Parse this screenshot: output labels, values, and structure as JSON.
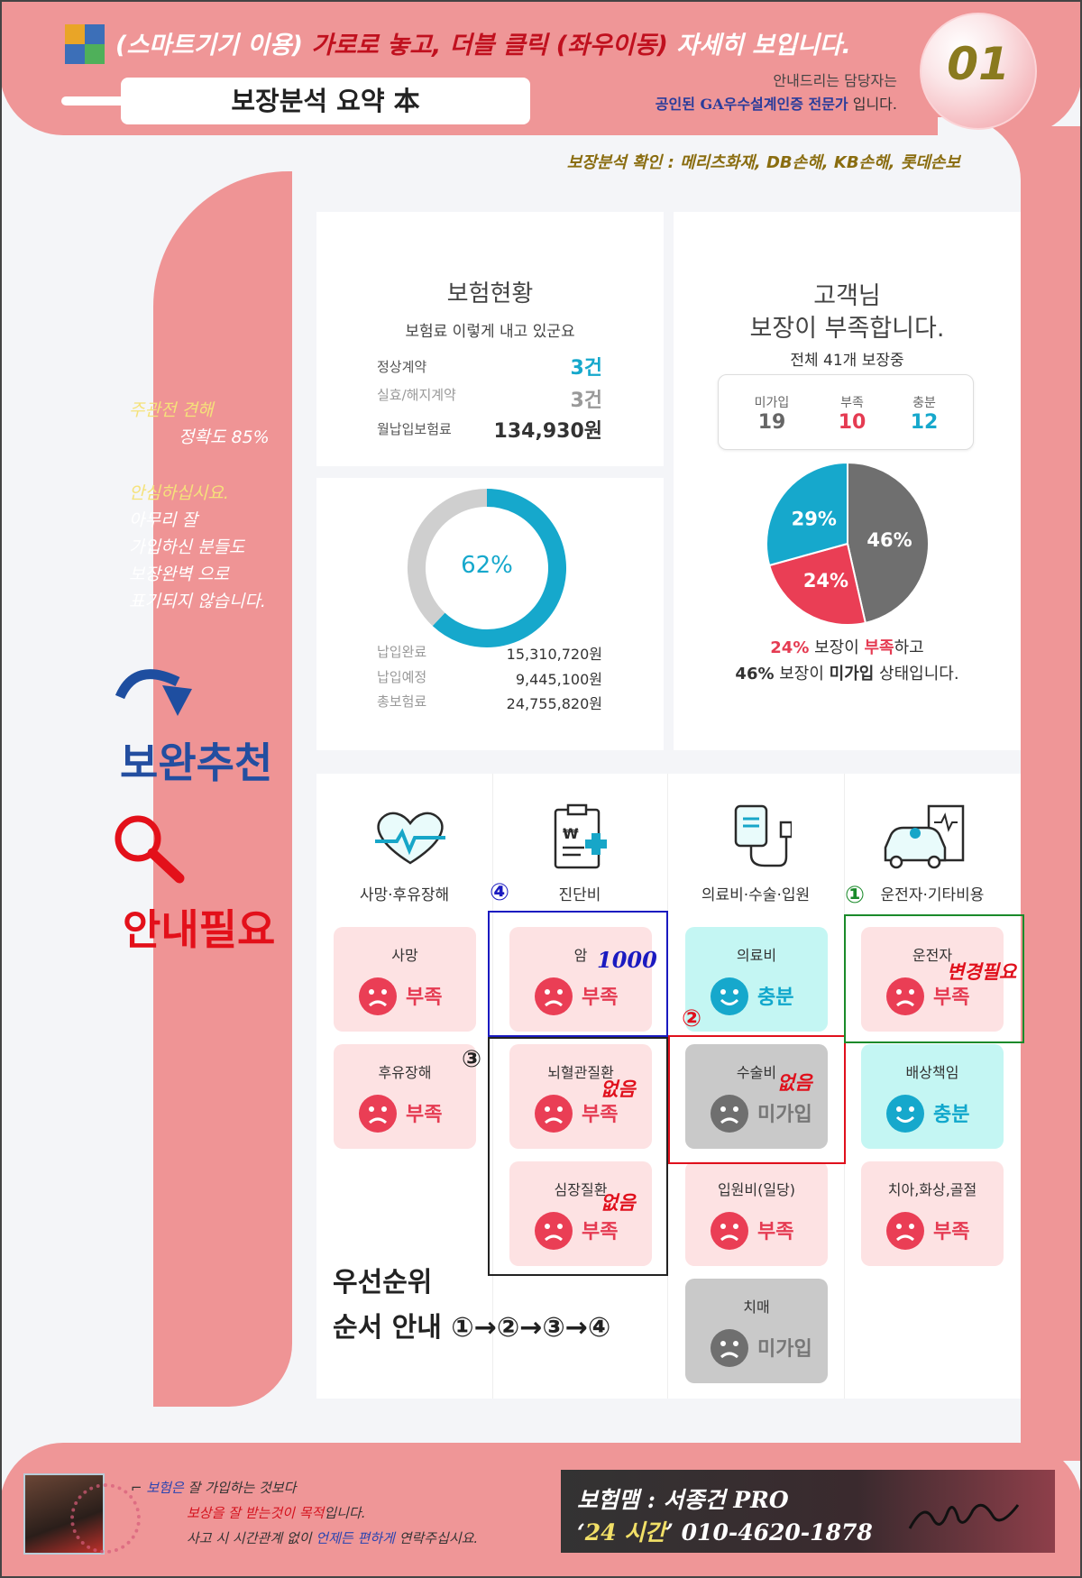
{
  "header": {
    "title_part1": "(스마트기기 이용) ",
    "title_part2": "가로로 놓고, 더블 클릭 (좌우이동)",
    "title_part3": " 자세히 보입니다.",
    "summary_title": "보장분석 요약 本",
    "guide_line1": "안내드리는 담당자는",
    "guide_line2_prefix": "공인된 GA우수설계인증 전문가",
    "guide_line2_suffix": " 입니다.",
    "page_number": "01",
    "insurers": "보장분석 확인 : 메리츠화재, DB손해, KB손해, 롯데손보"
  },
  "sidebar": {
    "accuracy_line1": "주관전 견해",
    "accuracy_line2": "정확도 85%",
    "reassure_line1": "안심하십시요.",
    "reassure_line2": "아무리 잘",
    "reassure_line3": "가입하신 분들도",
    "reassure_line4": "보장완벽 으로",
    "reassure_line5": "표기되지 않습니다.",
    "recommend_label": "보완추천",
    "need_label": "안내필요"
  },
  "status": {
    "title": "보험현황",
    "subtitle": "보험료 이렇게 내고 있군요",
    "rows": [
      {
        "label": "정상계약",
        "value": "3건",
        "color": "#16a8cc"
      },
      {
        "label": "실효/해지계약",
        "value": "3건",
        "color": "#999999"
      },
      {
        "label": "월납입보험료",
        "value": "134,930원",
        "color": "#333333"
      }
    ]
  },
  "payment": {
    "percent_text": "62%",
    "rows": [
      {
        "label": "납입완료",
        "value": "15,310,720원"
      },
      {
        "label": "납입예정",
        "value": "9,445,100원"
      },
      {
        "label": "총보험료",
        "value": "24,755,820원"
      }
    ]
  },
  "coverage": {
    "title_line1": "고객님",
    "title_line2": "보장이 부족합니다.",
    "total_text": "전체 41개 보장중",
    "stats": [
      {
        "label": "미가입",
        "value": "19",
        "color": "#666666"
      },
      {
        "label": "부족",
        "value": "10",
        "color": "#e53b52"
      },
      {
        "label": "충분",
        "value": "12",
        "color": "#16a8cc"
      }
    ],
    "summary1_pct": "24%",
    "summary1_mid": " 보장이 ",
    "summary1_bold": "부족",
    "summary1_end": "하고",
    "summary2_pct": "46%",
    "summary2_mid": " 보장이 ",
    "summary2_bold": "미가입",
    "summary2_end": " 상태입니다."
  },
  "chart_data": [
    {
      "type": "pie",
      "title": "",
      "slices": [
        {
          "label": "46%",
          "value": 46,
          "color": "#6f6f6f"
        },
        {
          "label": "24%",
          "value": 24,
          "color": "#ea3e55"
        },
        {
          "label": "29%",
          "value": 29,
          "color": "#16a8cc"
        }
      ]
    },
    {
      "type": "donut",
      "title": "",
      "values": [
        {
          "label": "62%",
          "value": 62,
          "color": "#16a8cc"
        },
        {
          "label": "",
          "value": 38,
          "color": "#cfcfcf"
        }
      ]
    }
  ],
  "categories": [
    {
      "label": "사망·후유장해",
      "icon": "heart-pulse-icon"
    },
    {
      "label": "진단비",
      "icon": "clipboard-won-icon"
    },
    {
      "label": "의료비·수술·입원",
      "icon": "iv-drip-icon"
    },
    {
      "label": "운전자·기타비용",
      "icon": "car-receipt-icon"
    }
  ],
  "tiles": {
    "death": {
      "name": "사망",
      "status": "부족"
    },
    "disability": {
      "name": "후유장해",
      "status": "부족"
    },
    "cancer": {
      "name": "암",
      "status": "부족",
      "note": "1000"
    },
    "stroke": {
      "name": "뇌혈관질환",
      "status": "부족",
      "note": "없음"
    },
    "heart": {
      "name": "심장질환",
      "status": "부족",
      "note": "없음"
    },
    "medical": {
      "name": "의료비",
      "status": "충분"
    },
    "surgery": {
      "name": "수술비",
      "status": "미가입",
      "note": "없음"
    },
    "hospital": {
      "name": "입원비(일당)",
      "status": "부족"
    },
    "dementia": {
      "name": "치매",
      "status": "미가입"
    },
    "driver": {
      "name": "운전자",
      "status": "부족",
      "note": "변경필요"
    },
    "liability": {
      "name": "배상책임",
      "status": "충분"
    },
    "dental": {
      "name": "치아,화상,골절",
      "status": "부족"
    }
  },
  "markers": {
    "m1": "①",
    "m2": "②",
    "m3": "③",
    "m4": "④",
    "colors": {
      "m1": "#1a8a2a",
      "m2": "#e0101c",
      "m3": "#222222",
      "m4": "#1a1ac0"
    }
  },
  "priority": {
    "line1": "우선순위",
    "line2": "순서 안내 ①→②→③→④"
  },
  "footer": {
    "quote_l1a": "보험은",
    "quote_l1b": " 잘 가입하는 것보다",
    "quote_l2a": "보상을 잘 받는것이 목적",
    "quote_l2b": "입니다.",
    "quote_l3a": "사고 시 시간관계 없이 ",
    "quote_l3b": "언제든 편하게",
    "quote_l3c": " 연락주십시요.",
    "agent": "보험맴 : 서종건 PRO",
    "hours_open": "‘",
    "hours": "24 시간",
    "hours_close": "’",
    "phone": "010-4620-1878"
  }
}
